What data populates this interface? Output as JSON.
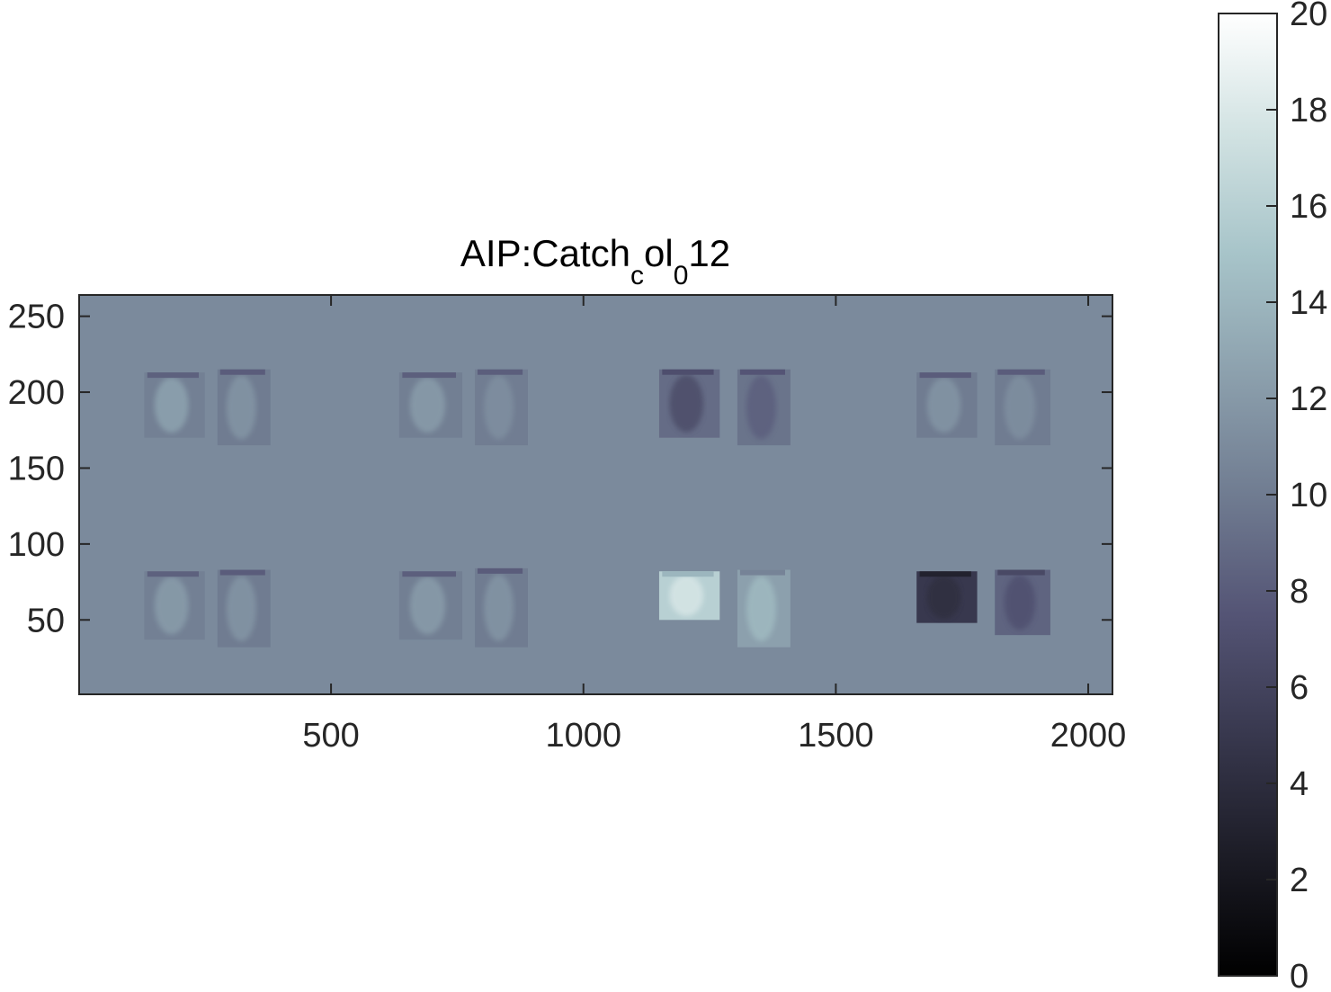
{
  "chart_data": {
    "type": "heatmap",
    "title": {
      "main": "AIP:Catch",
      "sub1": "c",
      "mid": "ol",
      "sub2": "0",
      "tail": "12"
    },
    "xlabel": "",
    "ylabel": "",
    "xlim": [
      1,
      2048
    ],
    "ylim": [
      1,
      264
    ],
    "x_ticks": [
      500,
      1000,
      1500,
      2000
    ],
    "x_tick_labels": [
      "500",
      "1000",
      "1500",
      "2000"
    ],
    "y_ticks": [
      50,
      100,
      150,
      200,
      250
    ],
    "y_tick_labels": [
      "50",
      "100",
      "150",
      "200",
      "250"
    ],
    "y_direction": "normal",
    "background_value": 11,
    "colormap": "bone",
    "colorbar": {
      "limits": [
        0,
        20
      ],
      "ticks": [
        0,
        2,
        4,
        6,
        8,
        10,
        12,
        14,
        16,
        18,
        20
      ],
      "tick_labels": [
        "0",
        "2",
        "4",
        "6",
        "8",
        "10",
        "12",
        "14",
        "16",
        "18",
        "20"
      ],
      "placement": "right"
    },
    "regions": [
      {
        "x": [
          130,
          250
        ],
        "y": [
          170,
          213
        ],
        "value": 10.3,
        "highlight": 13.0
      },
      {
        "x": [
          275,
          380
        ],
        "y": [
          165,
          215
        ],
        "value": 10.0,
        "highlight": 12.0
      },
      {
        "x": [
          635,
          760
        ],
        "y": [
          170,
          213
        ],
        "value": 10.2,
        "highlight": 12.5
      },
      {
        "x": [
          785,
          890
        ],
        "y": [
          165,
          215
        ],
        "value": 10.1,
        "highlight": 11.5
      },
      {
        "x": [
          1150,
          1270
        ],
        "y": [
          170,
          215
        ],
        "value": 9.0,
        "highlight": 6.5
      },
      {
        "x": [
          1305,
          1410
        ],
        "y": [
          165,
          215
        ],
        "value": 9.5,
        "highlight": 8.0
      },
      {
        "x": [
          1660,
          1780
        ],
        "y": [
          170,
          213
        ],
        "value": 10.0,
        "highlight": 12.0
      },
      {
        "x": [
          1815,
          1925
        ],
        "y": [
          165,
          215
        ],
        "value": 10.0,
        "highlight": 11.5
      },
      {
        "x": [
          130,
          250
        ],
        "y": [
          37,
          82
        ],
        "value": 10.3,
        "highlight": 12.5
      },
      {
        "x": [
          275,
          380
        ],
        "y": [
          32,
          83
        ],
        "value": 10.0,
        "highlight": 12.0
      },
      {
        "x": [
          635,
          760
        ],
        "y": [
          37,
          82
        ],
        "value": 10.2,
        "highlight": 12.5
      },
      {
        "x": [
          785,
          890
        ],
        "y": [
          32,
          84
        ],
        "value": 10.0,
        "highlight": 12.0
      },
      {
        "x": [
          1150,
          1270
        ],
        "y": [
          50,
          82
        ],
        "value": 16.0,
        "highlight": 18.0
      },
      {
        "x": [
          1305,
          1410
        ],
        "y": [
          32,
          83
        ],
        "value": 12.5,
        "highlight": 14.5
      },
      {
        "x": [
          1660,
          1780
        ],
        "y": [
          48,
          82
        ],
        "value": 5.0,
        "highlight": 4.0
      },
      {
        "x": [
          1815,
          1925
        ],
        "y": [
          40,
          83
        ],
        "value": 8.5,
        "highlight": 7.0
      }
    ]
  }
}
